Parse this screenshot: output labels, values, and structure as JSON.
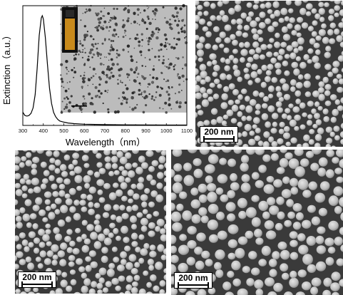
{
  "figure": {
    "spectrum_panel": {
      "xlabel": "Wavelength（nm）",
      "ylabel": "Extinction（a.u.）",
      "x_ticks": [
        "300",
        "400",
        "500",
        "600",
        "700",
        "800",
        "900",
        "1000",
        "1100"
      ],
      "y_ticks": []
    },
    "sem_panels": [
      {
        "scale_bar_label": "200 nm"
      },
      {
        "scale_bar_label": "200 nm"
      },
      {
        "scale_bar_label": "200 nm"
      }
    ]
  },
  "chart_data": {
    "type": "line",
    "title": "",
    "xlabel": "Wavelength（nm）",
    "ylabel": "Extinction（a.u.）",
    "xlim": [
      300,
      1100
    ],
    "ylim": [
      0,
      1.0
    ],
    "grid": false,
    "series": [
      {
        "x": [
          300,
          310,
          320,
          330,
          340,
          350,
          360,
          370,
          380,
          390,
          395,
          400,
          410,
          420,
          430,
          440,
          450,
          460,
          470,
          480,
          500,
          520,
          550,
          600,
          700,
          800,
          900,
          1000,
          1100
        ],
        "values": [
          0.12,
          0.09,
          0.085,
          0.09,
          0.11,
          0.16,
          0.28,
          0.52,
          0.82,
          0.98,
          1.0,
          0.97,
          0.8,
          0.56,
          0.34,
          0.2,
          0.12,
          0.08,
          0.055,
          0.04,
          0.03,
          0.022,
          0.016,
          0.011,
          0.007,
          0.005,
          0.004,
          0.003,
          0.003
        ]
      }
    ]
  },
  "colors": {
    "line": "#000000",
    "sem_background": "#3a3a3a",
    "particle": "#bdbdbd",
    "tem_background": "#bcbcbc",
    "vial_liquid": "#c88a1c"
  }
}
